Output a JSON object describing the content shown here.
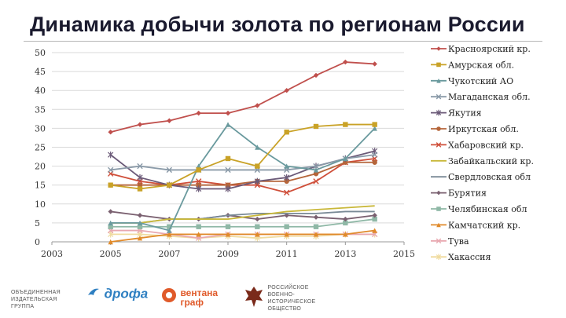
{
  "page": {
    "title": "Динамика добычи золота по регионам России"
  },
  "chart_data": {
    "type": "line",
    "title": "Динамика добычи золота по регионам России",
    "x": [
      2005,
      2006,
      2007,
      2008,
      2009,
      2010,
      2011,
      2012,
      2013,
      2014
    ],
    "xticks": [
      "2003",
      "2005",
      "2007",
      "2009",
      "2011",
      "2013",
      "2015"
    ],
    "xtick_values": [
      2003,
      2005,
      2007,
      2009,
      2011,
      2013,
      2015
    ],
    "yticks": [
      "0",
      "5",
      "10",
      "15",
      "20",
      "25",
      "30",
      "35",
      "40",
      "45",
      "50"
    ],
    "xlim": [
      2003,
      2015
    ],
    "ylim": [
      0,
      50
    ],
    "xlabel": "",
    "ylabel": "",
    "series": [
      {
        "name": "Красноярский кр.",
        "color": "#c0504d",
        "marker": "diamond",
        "values": [
          29,
          31,
          32,
          34,
          34,
          36,
          40,
          44,
          47.5,
          47
        ]
      },
      {
        "name": "Амурская обл.",
        "color": "#c9a227",
        "marker": "square",
        "values": [
          15,
          14,
          15,
          19,
          22,
          20,
          29,
          30.5,
          31,
          31
        ]
      },
      {
        "name": "Чукотский АО",
        "color": "#6a9a9e",
        "marker": "triangle",
        "values": [
          5,
          5,
          3,
          20,
          31,
          25,
          20,
          19,
          22,
          30
        ]
      },
      {
        "name": "Магаданская обл.",
        "color": "#8a9aa8",
        "marker": "x",
        "values": [
          19,
          20,
          19,
          19,
          19,
          19,
          19,
          20,
          22,
          23
        ]
      },
      {
        "name": "Якутия",
        "color": "#6b5a78",
        "marker": "star",
        "values": [
          23,
          17,
          15,
          14,
          14,
          16,
          17,
          20,
          22,
          24
        ]
      },
      {
        "name": "Иркутская обл.",
        "color": "#b5653a",
        "marker": "circle",
        "values": [
          15,
          15,
          15,
          15,
          15,
          16,
          16,
          18,
          21,
          21
        ]
      },
      {
        "name": "Хабаровский кр.",
        "color": "#cf4f3a",
        "marker": "x",
        "values": [
          18,
          16,
          15,
          16,
          15,
          15,
          13,
          16,
          21,
          22
        ]
      },
      {
        "name": "Забайкальский кр.",
        "color": "#c9b83a",
        "marker": "none",
        "values": [
          5,
          5,
          6,
          6,
          6,
          7,
          8,
          8.5,
          9,
          9.5
        ]
      },
      {
        "name": "Свердловская обл",
        "color": "#7a8a96",
        "marker": "none",
        "values": [
          5,
          5,
          6,
          6,
          7,
          7.5,
          7.5,
          7.5,
          8,
          8
        ]
      },
      {
        "name": "Бурятия",
        "color": "#7a6070",
        "marker": "diamond",
        "values": [
          8,
          7,
          6,
          6,
          7,
          6,
          7,
          6.5,
          6,
          7
        ]
      },
      {
        "name": "Челябинская обл",
        "color": "#8fb8a6",
        "marker": "square",
        "values": [
          4,
          4,
          4,
          4,
          4,
          4,
          4,
          4,
          5,
          6
        ]
      },
      {
        "name": "Камчатский кр.",
        "color": "#e08a2a",
        "marker": "triangle",
        "values": [
          0,
          1,
          2,
          2,
          2,
          2,
          2,
          2,
          2,
          3
        ]
      },
      {
        "name": "Тува",
        "color": "#e8a8b0",
        "marker": "x",
        "values": [
          3,
          3,
          2,
          1,
          2,
          2,
          2,
          2,
          2,
          2
        ]
      },
      {
        "name": "Хакассия",
        "color": "#f0dca0",
        "marker": "star",
        "values": [
          2,
          2,
          1.5,
          1,
          1.5,
          1,
          1.5,
          1.5,
          2,
          2
        ]
      }
    ]
  },
  "footer": {
    "pub1": "ОБЪЕДИНЕННАЯ ИЗДАТЕЛЬСКАЯ ГРУППА",
    "pub2": "дрофа",
    "pub3_line1": "вентана",
    "pub3_line2": "граф",
    "pub4": "РОССИЙСКОЕ ВОЕННО-ИСТОРИЧЕСКОЕ ОБЩЕСТВО",
    "brand_color": "#2e7fc1",
    "brand_color2": "#e05a2a"
  }
}
